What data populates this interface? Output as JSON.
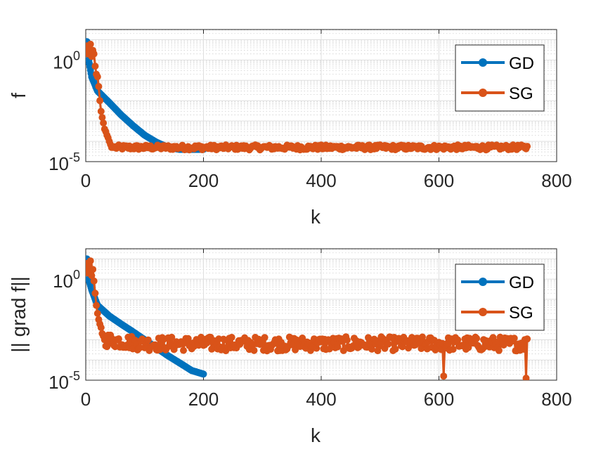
{
  "chart_data": [
    {
      "type": "line",
      "xlabel": "k",
      "ylabel": "f",
      "xlim": [
        0,
        800
      ],
      "ylim_exponents": [
        -5,
        1.5
      ],
      "yscale": "log",
      "xticks": [
        "0",
        "200",
        "400",
        "600",
        "800"
      ],
      "yticks": [
        {
          "base": "10",
          "exp": "0"
        },
        {
          "base": "10",
          "exp": "-5"
        }
      ],
      "grid": true,
      "legend": "top-right",
      "series": [
        {
          "name": "GD",
          "color": "#0072BD",
          "x": [
            0,
            2,
            5,
            10,
            20,
            40,
            60,
            80,
            100,
            120,
            140,
            160,
            180,
            200
          ],
          "y": [
            3.0,
            8.0,
            1.0,
            0.15,
            0.03,
            0.008,
            0.002,
            0.0006,
            0.0002,
            9e-05,
            5e-05,
            4e-05,
            4e-05,
            4e-05
          ]
        },
        {
          "name": "SG",
          "color": "#D95319",
          "x_start": 0,
          "x_end": 750,
          "noisy_tail_start": 150,
          "tail_level_exp": -4.3,
          "tail_noise_exp": 0.12,
          "y_initial": [
            3.0,
            5.0,
            2.0,
            4.0,
            6.0,
            1.5,
            3.0,
            2.0,
            0.5,
            0.2,
            0.15,
            0.05,
            0.01,
            0.003,
            0.0015,
            0.0008,
            0.0004,
            0.0003,
            0.0002,
            0.00015,
            0.0001,
            7e-05,
            5e-05,
            5e-05,
            5e-05
          ]
        }
      ]
    },
    {
      "type": "line",
      "xlabel": "k",
      "ylabel": "|| grad f||",
      "xlim": [
        0,
        800
      ],
      "ylim_exponents": [
        -5,
        1.5
      ],
      "yscale": "log",
      "xticks": [
        "0",
        "200",
        "400",
        "600",
        "800"
      ],
      "yticks": [
        {
          "base": "10",
          "exp": "0"
        },
        {
          "base": "10",
          "exp": "-5"
        }
      ],
      "grid": true,
      "legend": "top-right",
      "series": [
        {
          "name": "GD",
          "color": "#0072BD",
          "x": [
            0,
            2,
            5,
            10,
            20,
            40,
            60,
            80,
            100,
            120,
            140,
            160,
            180,
            200
          ],
          "y": [
            3.0,
            10.0,
            1.0,
            0.3,
            0.05,
            0.015,
            0.006,
            0.0025,
            0.001,
            0.0004,
            0.00016,
            7e-05,
            3e-05,
            2e-05
          ]
        },
        {
          "name": "SG",
          "color": "#D95319",
          "x_start": 0,
          "x_end": 750,
          "noisy_tail_start": 100,
          "tail_level_exp": -3.2,
          "tail_noise_exp": 0.35,
          "dips": [
            {
              "x": 608,
              "exp": -4.8
            },
            {
              "x": 748,
              "exp": -4.9
            }
          ],
          "y_initial": [
            3.0,
            6.0,
            2.0,
            5.0,
            8.0,
            1.5,
            3.0,
            0.8,
            0.2,
            0.05,
            0.02,
            0.01,
            0.006,
            0.004,
            0.002,
            0.0015,
            0.001
          ]
        }
      ]
    }
  ]
}
